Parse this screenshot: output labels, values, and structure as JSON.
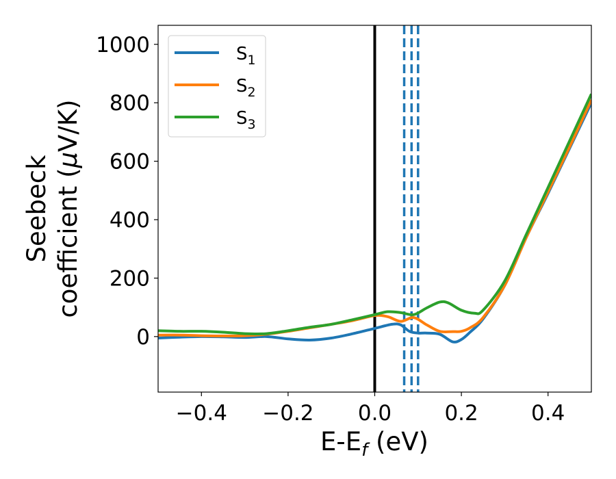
{
  "chart_data": {
    "type": "line",
    "xlabel": "E-E",
    "xlabel_sub": "f",
    "xlabel_unit": " (eV)",
    "ylabel_line1": "Seebeck",
    "ylabel_line2": "coefficient  (",
    "ylabel_mu": "μ",
    "ylabel_unit": "V/K)",
    "xlim": [
      -0.5,
      0.5
    ],
    "ylim": [
      -190,
      1065
    ],
    "x_ticks": [
      -0.4,
      -0.2,
      0.0,
      0.2,
      0.4
    ],
    "x_tick_labels": [
      "−0.4",
      "−0.2",
      "0.0",
      "0.2",
      "0.4"
    ],
    "y_ticks": [
      0,
      200,
      400,
      600,
      800,
      1000
    ],
    "y_tick_labels": [
      "0",
      "200",
      "400",
      "600",
      "800",
      "1000"
    ],
    "legend_position": "upper-left",
    "vertical_lines": [
      {
        "x": 0.0,
        "style": "solid",
        "color": "#000000"
      },
      {
        "x": 0.068,
        "style": "dashed",
        "color": "#1f77b4"
      },
      {
        "x": 0.085,
        "style": "dashed",
        "color": "#1f77b4"
      },
      {
        "x": 0.1,
        "style": "dashed",
        "color": "#1f77b4"
      }
    ],
    "series": [
      {
        "name": "S",
        "sub": "1",
        "color": "#1f77b4",
        "x": [
          -0.5,
          -0.45,
          -0.4,
          -0.35,
          -0.3,
          -0.25,
          -0.2,
          -0.15,
          -0.1,
          -0.05,
          0.0,
          0.04,
          0.06,
          0.08,
          0.1,
          0.12,
          0.15,
          0.18,
          0.2,
          0.22,
          0.25,
          0.3,
          0.35,
          0.4,
          0.45,
          0.5
        ],
        "y": [
          -5,
          -2,
          0,
          -1,
          -3,
          0,
          -8,
          -12,
          -5,
          10,
          28,
          42,
          40,
          18,
          12,
          12,
          8,
          -18,
          -10,
          15,
          60,
          175,
          340,
          490,
          645,
          800
        ]
      },
      {
        "name": "S",
        "sub": "2",
        "color": "#ff7f0e",
        "x": [
          -0.5,
          -0.45,
          -0.4,
          -0.35,
          -0.3,
          -0.25,
          -0.2,
          -0.15,
          -0.1,
          -0.05,
          0.0,
          0.03,
          0.06,
          0.09,
          0.12,
          0.15,
          0.18,
          0.2,
          0.22,
          0.25,
          0.3,
          0.35,
          0.4,
          0.45,
          0.5
        ],
        "y": [
          5,
          5,
          3,
          2,
          3,
          8,
          18,
          30,
          42,
          55,
          72,
          68,
          52,
          65,
          40,
          18,
          17,
          18,
          30,
          65,
          175,
          340,
          495,
          650,
          810
        ]
      },
      {
        "name": "S",
        "sub": "3",
        "color": "#2ca02c",
        "x": [
          -0.5,
          -0.45,
          -0.4,
          -0.35,
          -0.3,
          -0.25,
          -0.2,
          -0.15,
          -0.1,
          -0.05,
          0.0,
          0.03,
          0.06,
          0.09,
          0.12,
          0.15,
          0.17,
          0.2,
          0.23,
          0.25,
          0.3,
          0.35,
          0.4,
          0.45,
          0.5
        ],
        "y": [
          20,
          18,
          18,
          15,
          10,
          10,
          20,
          32,
          42,
          58,
          75,
          85,
          82,
          75,
          98,
          118,
          115,
          90,
          80,
          90,
          190,
          350,
          510,
          670,
          830
        ]
      }
    ]
  }
}
